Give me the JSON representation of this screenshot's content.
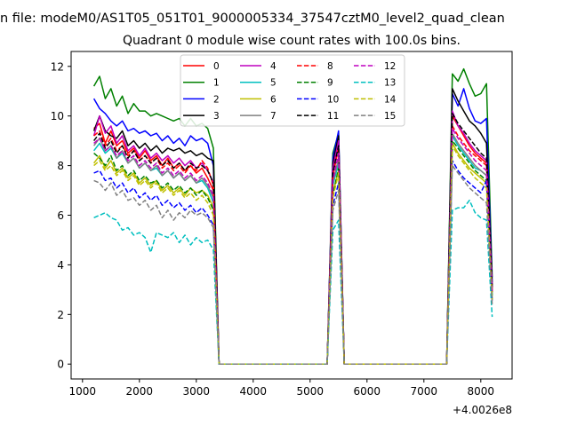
{
  "figure": {
    "suptitle": "n file: modeM0/AS1T05_051T01_9000005334_37547cztM0_level2_quad_clean",
    "title": "Quadrant 0 module wise count rates with 100.0s bins.",
    "x_offset_label": "+4.0026e8"
  },
  "chart_data": {
    "type": "line",
    "title": "Quadrant 0 module wise count rates with 100.0s bins.",
    "xlabel": "",
    "ylabel": "",
    "xlim": [
      800,
      8550
    ],
    "ylim": [
      -0.6,
      12.6
    ],
    "x_offset": "+4.0026e8",
    "xticks": [
      1000,
      2000,
      3000,
      4000,
      5000,
      6000,
      7000,
      8000
    ],
    "xtick_labels": [
      "1000",
      "2000",
      "3000",
      "4000",
      "5000",
      "6000",
      "7000",
      "8000"
    ],
    "yticks": [
      0,
      2,
      4,
      6,
      8,
      10,
      12
    ],
    "ytick_labels": [
      "0",
      "2",
      "4",
      "6",
      "8",
      "10",
      "12"
    ],
    "grid": false,
    "legend_placement": "top-center",
    "legend_columns": 4,
    "x": [
      1200,
      1300,
      1400,
      1500,
      1600,
      1700,
      1800,
      1900,
      2000,
      2100,
      2200,
      2300,
      2400,
      2500,
      2600,
      2700,
      2800,
      2900,
      3000,
      3100,
      3200,
      3300,
      3400,
      3500,
      3600,
      3700,
      3800,
      3900,
      4000,
      4100,
      4200,
      4300,
      4400,
      4500,
      4600,
      4700,
      4800,
      4900,
      5000,
      5100,
      5200,
      5300,
      5400,
      5500,
      5600,
      5700,
      5800,
      5900,
      6000,
      6100,
      6200,
      6300,
      6400,
      6500,
      6600,
      6700,
      6800,
      6900,
      7000,
      7100,
      7200,
      7300,
      7400,
      7500,
      7600,
      7700,
      7800,
      7900,
      8000,
      8100,
      8200
    ],
    "series": [
      {
        "name": "0",
        "color": "#ff0000",
        "linestyle": "solid",
        "values": [
          9.5,
          9.7,
          8.9,
          9.4,
          8.8,
          9.0,
          8.5,
          8.7,
          8.3,
          8.6,
          8.2,
          8.4,
          8.0,
          8.3,
          7.9,
          8.1,
          7.8,
          8.0,
          7.7,
          7.9,
          7.5,
          7.0,
          0,
          0,
          0,
          0,
          0,
          0,
          0,
          0,
          0,
          0,
          0,
          0,
          0,
          0,
          0,
          0,
          0,
          0,
          0,
          0,
          7.8,
          8.9,
          0,
          0,
          0,
          0,
          0,
          0,
          0,
          0,
          0,
          0,
          0,
          0,
          0,
          0,
          0,
          0,
          0,
          0,
          0,
          10.0,
          9.6,
          9.2,
          8.8,
          8.5,
          8.3,
          8.1,
          3.0
        ]
      },
      {
        "name": "1",
        "color": "#008000",
        "linestyle": "solid",
        "values": [
          11.2,
          11.6,
          10.7,
          11.1,
          10.4,
          10.8,
          10.1,
          10.5,
          10.2,
          10.2,
          10.0,
          10.1,
          10.0,
          9.9,
          9.8,
          9.9,
          9.6,
          9.9,
          9.6,
          9.7,
          9.5,
          8.7,
          0,
          0,
          0,
          0,
          0,
          0,
          0,
          0,
          0,
          0,
          0,
          0,
          0,
          0,
          0,
          0,
          0,
          0,
          0,
          0,
          8.5,
          9.3,
          0,
          0,
          0,
          0,
          0,
          0,
          0,
          0,
          0,
          0,
          0,
          0,
          0,
          0,
          0,
          0,
          0,
          0,
          0,
          11.7,
          11.4,
          11.9,
          11.3,
          10.8,
          10.9,
          11.3,
          3.5
        ]
      },
      {
        "name": "2",
        "color": "#0000ff",
        "linestyle": "solid",
        "values": [
          10.7,
          10.3,
          10.1,
          9.8,
          9.6,
          9.8,
          9.4,
          9.5,
          9.3,
          9.4,
          9.2,
          9.3,
          9.0,
          9.2,
          8.9,
          9.1,
          8.8,
          9.2,
          9.0,
          9.1,
          8.9,
          8.0,
          0,
          0,
          0,
          0,
          0,
          0,
          0,
          0,
          0,
          0,
          0,
          0,
          0,
          0,
          0,
          0,
          0,
          0,
          0,
          0,
          8.3,
          9.4,
          0,
          0,
          0,
          0,
          0,
          0,
          0,
          0,
          0,
          0,
          0,
          0,
          0,
          0,
          0,
          0,
          0,
          0,
          0,
          10.9,
          10.4,
          11.1,
          10.3,
          9.8,
          9.7,
          9.9,
          3.3
        ]
      },
      {
        "name": "3",
        "color": "#000000",
        "linestyle": "solid",
        "values": [
          9.4,
          10.0,
          9.4,
          9.2,
          9.1,
          9.4,
          8.8,
          9.0,
          8.7,
          8.9,
          8.6,
          8.8,
          8.5,
          8.7,
          8.6,
          8.7,
          8.5,
          8.6,
          8.4,
          8.5,
          8.3,
          8.2,
          0,
          0,
          0,
          0,
          0,
          0,
          0,
          0,
          0,
          0,
          0,
          0,
          0,
          0,
          0,
          0,
          0,
          0,
          0,
          0,
          8.1,
          9.2,
          0,
          0,
          0,
          0,
          0,
          0,
          0,
          0,
          0,
          0,
          0,
          0,
          0,
          0,
          0,
          0,
          0,
          0,
          0,
          11.1,
          10.6,
          10.2,
          9.8,
          9.6,
          9.3,
          8.9,
          3.2
        ]
      },
      {
        "name": "4",
        "color": "#bf00bf",
        "linestyle": "solid",
        "values": [
          9.2,
          10.0,
          9.3,
          9.6,
          8.9,
          9.2,
          8.6,
          8.8,
          8.4,
          8.7,
          8.3,
          8.5,
          8.2,
          8.4,
          8.1,
          8.3,
          8.0,
          8.2,
          7.9,
          8.1,
          7.8,
          7.3,
          0,
          0,
          0,
          0,
          0,
          0,
          0,
          0,
          0,
          0,
          0,
          0,
          0,
          0,
          0,
          0,
          0,
          0,
          0,
          0,
          7.9,
          9.0,
          0,
          0,
          0,
          0,
          0,
          0,
          0,
          0,
          0,
          0,
          0,
          0,
          0,
          0,
          0,
          0,
          0,
          0,
          0,
          10.2,
          9.6,
          9.3,
          8.9,
          8.6,
          8.4,
          8.2,
          3.1
        ]
      },
      {
        "name": "5",
        "color": "#00bfbf",
        "linestyle": "solid",
        "values": [
          8.6,
          8.9,
          8.5,
          8.7,
          8.3,
          8.5,
          8.1,
          8.3,
          7.9,
          8.1,
          7.8,
          7.9,
          7.6,
          7.8,
          7.5,
          7.7,
          7.4,
          7.6,
          7.3,
          7.4,
          7.1,
          6.5,
          0,
          0,
          0,
          0,
          0,
          0,
          0,
          0,
          0,
          0,
          0,
          0,
          0,
          0,
          0,
          0,
          0,
          0,
          0,
          0,
          7.2,
          8.1,
          0,
          0,
          0,
          0,
          0,
          0,
          0,
          0,
          0,
          0,
          0,
          0,
          0,
          0,
          0,
          0,
          0,
          0,
          0,
          9.2,
          8.8,
          8.5,
          8.2,
          7.9,
          7.8,
          7.6,
          2.8
        ]
      },
      {
        "name": "6",
        "color": "#bfbf00",
        "linestyle": "solid",
        "values": [
          8.1,
          8.4,
          7.9,
          8.2,
          7.7,
          7.9,
          7.5,
          7.7,
          7.3,
          7.5,
          7.2,
          7.4,
          7.0,
          7.2,
          6.9,
          7.1,
          6.8,
          7.1,
          6.9,
          7.0,
          6.8,
          6.3,
          0,
          0,
          0,
          0,
          0,
          0,
          0,
          0,
          0,
          0,
          0,
          0,
          0,
          0,
          0,
          0,
          0,
          0,
          0,
          0,
          6.9,
          7.8,
          0,
          0,
          0,
          0,
          0,
          0,
          0,
          0,
          0,
          0,
          0,
          0,
          0,
          0,
          0,
          0,
          0,
          0,
          0,
          8.9,
          8.5,
          8.2,
          7.9,
          7.7,
          7.5,
          7.3,
          2.6
        ]
      },
      {
        "name": "7",
        "color": "#808080",
        "linestyle": "solid",
        "values": [
          8.8,
          9.1,
          8.6,
          8.8,
          8.3,
          8.6,
          8.1,
          8.3,
          7.9,
          8.1,
          7.8,
          8.0,
          7.6,
          7.8,
          7.5,
          7.7,
          7.4,
          7.6,
          7.3,
          7.5,
          7.2,
          6.7,
          0,
          0,
          0,
          0,
          0,
          0,
          0,
          0,
          0,
          0,
          0,
          0,
          0,
          0,
          0,
          0,
          0,
          0,
          0,
          0,
          7.3,
          8.3,
          0,
          0,
          0,
          0,
          0,
          0,
          0,
          0,
          0,
          0,
          0,
          0,
          0,
          0,
          0,
          0,
          0,
          0,
          0,
          9.3,
          8.9,
          8.6,
          8.3,
          8.0,
          7.8,
          7.6,
          2.9
        ]
      },
      {
        "name": "8",
        "color": "#ff0000",
        "linestyle": "dashed",
        "values": [
          9.2,
          9.4,
          8.8,
          9.1,
          8.6,
          8.8,
          8.4,
          8.6,
          8.2,
          8.4,
          8.1,
          8.3,
          7.9,
          8.1,
          7.8,
          8.0,
          7.7,
          8.0,
          7.8,
          8.2,
          7.9,
          7.2,
          0,
          0,
          0,
          0,
          0,
          0,
          0,
          0,
          0,
          0,
          0,
          0,
          0,
          0,
          0,
          0,
          0,
          0,
          0,
          0,
          7.6,
          8.7,
          0,
          0,
          0,
          0,
          0,
          0,
          0,
          0,
          0,
          0,
          0,
          0,
          0,
          0,
          0,
          0,
          0,
          0,
          0,
          9.6,
          9.2,
          8.9,
          8.6,
          8.4,
          8.2,
          8.0,
          2.9
        ]
      },
      {
        "name": "9",
        "color": "#008000",
        "linestyle": "dashed",
        "values": [
          8.5,
          8.3,
          8.0,
          8.4,
          7.8,
          8.0,
          7.6,
          7.8,
          7.4,
          7.6,
          7.3,
          7.4,
          7.1,
          7.3,
          7.0,
          7.2,
          6.9,
          7.1,
          6.8,
          7.0,
          6.7,
          6.2,
          0,
          0,
          0,
          0,
          0,
          0,
          0,
          0,
          0,
          0,
          0,
          0,
          0,
          0,
          0,
          0,
          0,
          0,
          0,
          0,
          6.8,
          7.9,
          0,
          0,
          0,
          0,
          0,
          0,
          0,
          0,
          0,
          0,
          0,
          0,
          0,
          0,
          0,
          0,
          0,
          0,
          0,
          9.0,
          8.7,
          8.4,
          8.1,
          7.8,
          7.6,
          7.4,
          2.7
        ]
      },
      {
        "name": "10",
        "color": "#0000ff",
        "linestyle": "dashed",
        "values": [
          7.7,
          7.8,
          7.4,
          7.5,
          7.1,
          7.3,
          6.9,
          7.1,
          6.7,
          6.9,
          6.6,
          6.8,
          6.4,
          6.6,
          6.3,
          6.5,
          6.2,
          6.4,
          6.1,
          6.3,
          6.0,
          5.6,
          0,
          0,
          0,
          0,
          0,
          0,
          0,
          0,
          0,
          0,
          0,
          0,
          0,
          0,
          0,
          0,
          0,
          0,
          0,
          0,
          6.4,
          7.3,
          0,
          0,
          0,
          0,
          0,
          0,
          0,
          0,
          0,
          0,
          0,
          0,
          0,
          0,
          0,
          0,
          0,
          0,
          0,
          8.2,
          7.8,
          7.5,
          7.3,
          7.1,
          6.9,
          7.4,
          2.5
        ]
      },
      {
        "name": "11",
        "color": "#000000",
        "linestyle": "dashed",
        "values": [
          9.0,
          9.3,
          8.7,
          9.0,
          8.5,
          8.8,
          8.3,
          8.6,
          8.2,
          8.4,
          8.1,
          8.3,
          8.0,
          8.2,
          7.9,
          8.1,
          7.8,
          8.1,
          7.9,
          8.0,
          7.8,
          7.3,
          0,
          0,
          0,
          0,
          0,
          0,
          0,
          0,
          0,
          0,
          0,
          0,
          0,
          0,
          0,
          0,
          0,
          0,
          0,
          0,
          7.7,
          8.8,
          0,
          0,
          0,
          0,
          0,
          0,
          0,
          0,
          0,
          0,
          0,
          0,
          0,
          0,
          0,
          0,
          0,
          0,
          0,
          10.1,
          9.7,
          9.4,
          9.1,
          8.8,
          8.5,
          8.3,
          3.1
        ]
      },
      {
        "name": "12",
        "color": "#bf00bf",
        "linestyle": "dashed",
        "values": [
          8.9,
          9.1,
          8.6,
          8.8,
          8.4,
          8.6,
          8.2,
          8.4,
          8.0,
          8.2,
          7.9,
          8.1,
          7.7,
          7.9,
          7.6,
          7.8,
          7.5,
          7.7,
          7.4,
          7.6,
          7.3,
          6.8,
          0,
          0,
          0,
          0,
          0,
          0,
          0,
          0,
          0,
          0,
          0,
          0,
          0,
          0,
          0,
          0,
          0,
          0,
          0,
          0,
          7.4,
          8.5,
          0,
          0,
          0,
          0,
          0,
          0,
          0,
          0,
          0,
          0,
          0,
          0,
          0,
          0,
          0,
          0,
          0,
          0,
          0,
          9.5,
          9.1,
          8.8,
          8.5,
          8.2,
          8.0,
          7.8,
          2.9
        ]
      },
      {
        "name": "13",
        "color": "#00bfbf",
        "linestyle": "dashed",
        "values": [
          5.9,
          6.0,
          6.1,
          5.9,
          5.8,
          5.4,
          5.5,
          5.2,
          5.3,
          5.1,
          4.5,
          5.3,
          5.2,
          5.1,
          5.3,
          4.9,
          5.2,
          4.8,
          5.1,
          4.9,
          5.0,
          4.6,
          0,
          0,
          0,
          0,
          0,
          0,
          0,
          0,
          0,
          0,
          0,
          0,
          0,
          0,
          0,
          0,
          0,
          0,
          0,
          0,
          5.4,
          5.8,
          0,
          0,
          0,
          0,
          0,
          0,
          0,
          0,
          0,
          0,
          0,
          0,
          0,
          0,
          0,
          0,
          0,
          0,
          0,
          6.2,
          6.3,
          6.3,
          6.6,
          6.1,
          5.9,
          5.8,
          1.9
        ]
      },
      {
        "name": "14",
        "color": "#bfbf00",
        "linestyle": "dashed",
        "values": [
          8.0,
          8.2,
          7.8,
          8.0,
          7.6,
          7.8,
          7.4,
          7.6,
          7.2,
          7.4,
          7.1,
          7.3,
          6.9,
          7.1,
          6.8,
          7.0,
          6.7,
          6.9,
          6.6,
          6.8,
          6.5,
          6.0,
          0,
          0,
          0,
          0,
          0,
          0,
          0,
          0,
          0,
          0,
          0,
          0,
          0,
          0,
          0,
          0,
          0,
          0,
          0,
          0,
          6.7,
          7.7,
          0,
          0,
          0,
          0,
          0,
          0,
          0,
          0,
          0,
          0,
          0,
          0,
          0,
          0,
          0,
          0,
          0,
          0,
          0,
          8.8,
          8.4,
          8.1,
          7.8,
          7.5,
          7.3,
          7.1,
          2.6
        ]
      },
      {
        "name": "15",
        "color": "#808080",
        "linestyle": "dashed",
        "values": [
          7.4,
          7.3,
          7.0,
          7.3,
          6.8,
          7.0,
          6.6,
          6.7,
          6.4,
          6.6,
          6.2,
          6.4,
          5.9,
          6.2,
          5.8,
          6.1,
          5.9,
          6.2,
          6.0,
          6.1,
          5.9,
          5.5,
          0,
          0,
          0,
          0,
          0,
          0,
          0,
          0,
          0,
          0,
          0,
          0,
          0,
          0,
          0,
          0,
          0,
          0,
          0,
          0,
          6.2,
          7.0,
          0,
          0,
          0,
          0,
          0,
          0,
          0,
          0,
          0,
          0,
          0,
          0,
          0,
          0,
          0,
          0,
          0,
          0,
          0,
          8.0,
          7.7,
          7.4,
          7.1,
          6.9,
          6.7,
          6.5,
          2.4
        ]
      }
    ]
  }
}
